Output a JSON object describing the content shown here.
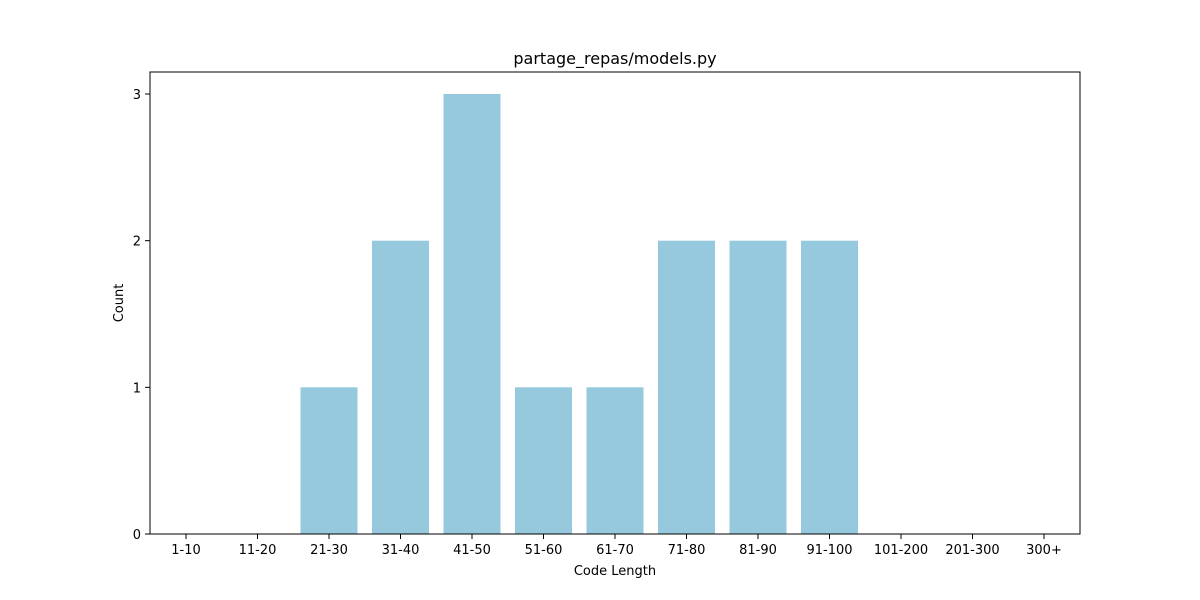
{
  "chart_data": {
    "type": "bar",
    "title": "partage_repas/models.py",
    "xlabel": "Code Length",
    "ylabel": "Count",
    "categories": [
      "1-10",
      "11-20",
      "21-30",
      "31-40",
      "41-50",
      "51-60",
      "61-70",
      "71-80",
      "81-90",
      "91-100",
      "101-200",
      "201-300",
      "300+"
    ],
    "values": [
      0,
      0,
      1,
      2,
      3,
      1,
      1,
      2,
      2,
      2,
      0,
      0,
      0
    ],
    "yticks": [
      "0",
      "1",
      "2",
      "3"
    ],
    "ylim": [
      0,
      3.15
    ],
    "grid": false,
    "legend": "none",
    "bar_color": "#96c9dd"
  }
}
